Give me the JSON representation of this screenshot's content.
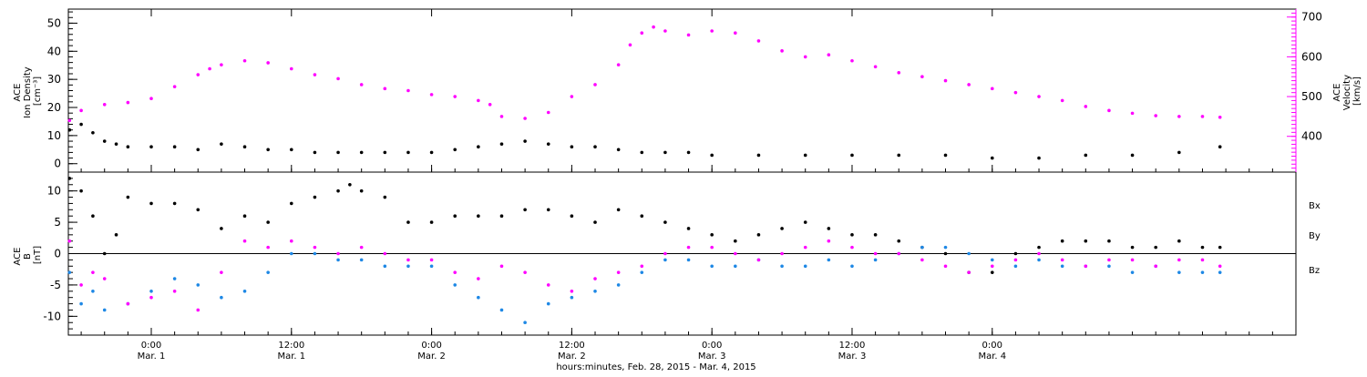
{
  "figure": {
    "x_axis_title": "hours:minutes, Feb. 28, 2015 - Mar. 4, 2015",
    "x_tick_times": [
      "0:00",
      "12:00",
      "0:00",
      "12:00",
      "0:00",
      "12:00",
      "0:00"
    ],
    "x_tick_dates": [
      "Mar. 1",
      "Mar. 1",
      "Mar. 2",
      "Mar. 2",
      "Mar. 3",
      "Mar. 3",
      "Mar. 4"
    ]
  },
  "chart_data": [
    {
      "type": "scatter",
      "panel": "top",
      "x_unit": "hours since Feb. 28, 2015 00:00",
      "xlim": [
        16.9,
        122.0
      ],
      "y_left_label_lines": [
        "ACE",
        "Ion Density",
        "[cm⁻³]"
      ],
      "y_right_label_lines": [
        "ACE",
        "Velocity",
        "[km/s]"
      ],
      "y_left_ticks": [
        "0",
        "10",
        "20",
        "30",
        "40",
        "50"
      ],
      "y_right_ticks": [
        "400",
        "500",
        "600",
        "700"
      ],
      "y_left_lim": [
        -3,
        55
      ],
      "y_right_lim": [
        310,
        720
      ],
      "series": [
        {
          "name": "",
          "axis": "left",
          "color": "#000000",
          "x": [
            17,
            18,
            19,
            20,
            21,
            22,
            24,
            26,
            28,
            30,
            32,
            34,
            36,
            38,
            40,
            42,
            44,
            46,
            48,
            50,
            52,
            54,
            56,
            58,
            60,
            62,
            64,
            66,
            68,
            70,
            72,
            76,
            80,
            84,
            88,
            92,
            96,
            100,
            104,
            108,
            112,
            115.5
          ],
          "y": [
            12,
            14,
            11,
            8,
            7,
            6,
            6,
            6,
            5,
            7,
            6,
            5,
            5,
            4,
            4,
            4,
            4,
            4,
            4,
            5,
            6,
            7,
            8,
            7,
            6,
            6,
            5,
            4,
            4,
            4,
            3,
            3,
            3,
            3,
            3,
            3,
            2,
            2,
            3,
            3,
            4,
            6
          ]
        },
        {
          "name": "",
          "axis": "right",
          "color": "#ff00ff",
          "x": [
            17,
            18,
            20,
            22,
            24,
            26,
            28,
            29,
            30,
            32,
            34,
            36,
            38,
            40,
            42,
            44,
            46,
            48,
            50,
            52,
            53,
            54,
            56,
            58,
            60,
            62,
            64,
            65,
            66,
            67,
            68,
            70,
            72,
            74,
            76,
            78,
            80,
            82,
            84,
            86,
            88,
            90,
            92,
            94,
            96,
            98,
            100,
            102,
            104,
            106,
            108,
            110,
            112,
            114,
            115.5
          ],
          "y": [
            440,
            465,
            480,
            485,
            495,
            525,
            555,
            570,
            580,
            590,
            585,
            570,
            555,
            545,
            530,
            520,
            515,
            505,
            500,
            490,
            480,
            450,
            445,
            460,
            500,
            530,
            580,
            630,
            660,
            675,
            665,
            655,
            665,
            660,
            640,
            615,
            600,
            605,
            590,
            575,
            560,
            550,
            540,
            530,
            520,
            510,
            500,
            490,
            475,
            465,
            458,
            452,
            450,
            450,
            448
          ]
        }
      ]
    },
    {
      "type": "scatter",
      "panel": "bottom",
      "x_unit": "hours since Feb. 28, 2015 00:00",
      "xlim": [
        16.9,
        122.0
      ],
      "y_label_lines": [
        "ACE",
        "B",
        "[nT]"
      ],
      "y_ticks": [
        "-10",
        "-5",
        "0",
        "5",
        "10"
      ],
      "ylim": [
        -13,
        13
      ],
      "zero_line": true,
      "legend": [
        "Bx",
        "By",
        "Bz"
      ],
      "series": [
        {
          "name": "Bx",
          "color": "#000000",
          "x": [
            17,
            18,
            19,
            20,
            21,
            22,
            24,
            26,
            28,
            30,
            32,
            34,
            36,
            38,
            40,
            41,
            42,
            44,
            46,
            48,
            50,
            52,
            54,
            56,
            58,
            60,
            62,
            64,
            66,
            68,
            70,
            72,
            74,
            76,
            78,
            80,
            82,
            84,
            86,
            88,
            90,
            92,
            94,
            96,
            98,
            100,
            102,
            104,
            106,
            108,
            110,
            112,
            114,
            115.5
          ],
          "y": [
            12,
            10,
            6,
            0,
            3,
            9,
            8,
            8,
            7,
            4,
            6,
            5,
            8,
            9,
            10,
            11,
            10,
            9,
            5,
            5,
            6,
            6,
            6,
            7,
            7,
            6,
            5,
            7,
            6,
            5,
            4,
            3,
            2,
            3,
            4,
            5,
            4,
            3,
            3,
            2,
            1,
            0,
            -3,
            -3,
            0,
            1,
            2,
            2,
            2,
            1,
            1,
            2,
            1,
            1
          ]
        },
        {
          "name": "By",
          "color": "#1e88e5",
          "x": [
            17,
            18,
            19,
            20,
            22,
            24,
            26,
            28,
            30,
            32,
            34,
            36,
            38,
            40,
            42,
            44,
            46,
            48,
            50,
            52,
            54,
            56,
            58,
            60,
            62,
            64,
            66,
            68,
            70,
            72,
            74,
            76,
            78,
            80,
            82,
            84,
            86,
            88,
            90,
            92,
            94,
            96,
            98,
            100,
            102,
            104,
            106,
            108,
            110,
            112,
            114,
            115.5
          ],
          "y": [
            -3,
            -8,
            -6,
            -9,
            -8,
            -6,
            -4,
            -5,
            -7,
            -6,
            -3,
            0,
            0,
            -1,
            -1,
            -2,
            -2,
            -2,
            -5,
            -7,
            -9,
            -11,
            -8,
            -7,
            -6,
            -5,
            -3,
            -1,
            -1,
            -2,
            -2,
            -1,
            -2,
            -2,
            -1,
            -2,
            -1,
            0,
            1,
            1,
            0,
            -1,
            -2,
            -1,
            -2,
            -2,
            -2,
            -3,
            -2,
            -3,
            -3,
            -3
          ]
        },
        {
          "name": "Bz",
          "color": "#ff00ff",
          "x": [
            17,
            18,
            19,
            20,
            22,
            24,
            26,
            28,
            30,
            32,
            34,
            36,
            38,
            40,
            42,
            44,
            46,
            48,
            50,
            52,
            54,
            56,
            58,
            60,
            62,
            64,
            66,
            68,
            70,
            72,
            74,
            76,
            78,
            80,
            82,
            84,
            86,
            88,
            90,
            92,
            94,
            96,
            98,
            100,
            102,
            104,
            106,
            108,
            110,
            112,
            114,
            115.5
          ],
          "y": [
            2,
            -5,
            -3,
            -4,
            -8,
            -7,
            -6,
            -9,
            -3,
            2,
            1,
            2,
            1,
            0,
            1,
            0,
            -1,
            -1,
            -3,
            -4,
            -2,
            -3,
            -5,
            -6,
            -4,
            -3,
            -2,
            0,
            1,
            1,
            0,
            -1,
            0,
            1,
            2,
            1,
            0,
            0,
            -1,
            -2,
            -3,
            -2,
            -1,
            0,
            -1,
            -2,
            -1,
            -1,
            -2,
            -1,
            -1,
            -2
          ]
        }
      ]
    }
  ]
}
